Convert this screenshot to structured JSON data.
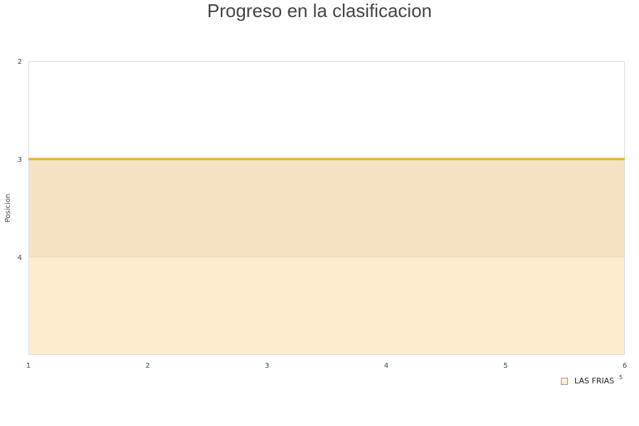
{
  "chart_data": {
    "type": "line",
    "title": "Progreso en la clasificacion",
    "xlabel": "",
    "ylabel": "Posicion",
    "x": [
      1,
      2,
      3,
      4,
      5,
      6
    ],
    "xlim": [
      1,
      6
    ],
    "ylim": [
      2,
      5
    ],
    "y_reversed": true,
    "x_ticks": [
      "1",
      "2",
      "3",
      "4",
      "5",
      "6"
    ],
    "y_ticks": [
      "2",
      "3",
      "4"
    ],
    "y_extra_label": "5",
    "series": [
      {
        "name": "LAS FRIAS",
        "values": [
          3,
          3,
          3,
          3,
          3,
          3
        ],
        "color": "#f5a623"
      }
    ],
    "bands": [
      {
        "from": 3,
        "to": 4,
        "color": "#f5e3c3"
      },
      {
        "from": 4,
        "to": 5,
        "color": "#feecce"
      }
    ],
    "legend_position": "bottom-right",
    "grid": false
  }
}
